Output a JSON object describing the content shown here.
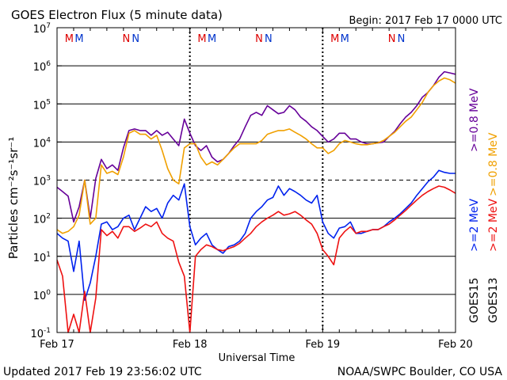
{
  "header": {
    "title": "GOES Electron Flux (5 minute data)",
    "begin": "Begin: 2017 Feb 17 0000 UTC"
  },
  "footer": {
    "updated": "Updated 2017 Feb 19 23:56:02 UTC",
    "credit": "NOAA/SWPC Boulder, CO USA"
  },
  "colors": {
    "goes15_08": "#660099",
    "goes13_08": "#f0a000",
    "goes15_2": "#0022ee",
    "goes13_2": "#ee1111",
    "marker_M": "#dd0000",
    "marker_N": "#0033cc"
  },
  "chart_data": {
    "type": "line",
    "title": "GOES Electron Flux (5 minute data)",
    "xlabel": "Universal Time",
    "ylabel": "Particles cm⁻²s⁻¹sr⁻¹",
    "y_scale": "log",
    "ylim": [
      0.1,
      10000000
    ],
    "y_ticks": [
      {
        "base": "10",
        "exp": "-1"
      },
      {
        "base": "10",
        "exp": "0"
      },
      {
        "base": "10",
        "exp": "1"
      },
      {
        "base": "10",
        "exp": "2"
      },
      {
        "base": "10",
        "exp": "3"
      },
      {
        "base": "10",
        "exp": "4"
      },
      {
        "base": "10",
        "exp": "5"
      },
      {
        "base": "10",
        "exp": "6"
      },
      {
        "base": "10",
        "exp": "7"
      }
    ],
    "x_ticks": [
      "Feb 17",
      "Feb 18",
      "Feb 19",
      "Feb 20"
    ],
    "xlim_hours": [
      0,
      72
    ],
    "markers": [
      {
        "label": "M",
        "hour": 2.2,
        "color": "#dd0000"
      },
      {
        "label": "M",
        "hour": 4.0,
        "color": "#0033cc"
      },
      {
        "label": "N",
        "hour": 12.5,
        "color": "#dd0000"
      },
      {
        "label": "N",
        "hour": 14.2,
        "color": "#0033cc"
      },
      {
        "label": "M",
        "hour": 26.2,
        "color": "#dd0000"
      },
      {
        "label": "M",
        "hour": 28.0,
        "color": "#0033cc"
      },
      {
        "label": "N",
        "hour": 36.5,
        "color": "#dd0000"
      },
      {
        "label": "N",
        "hour": 38.2,
        "color": "#0033cc"
      },
      {
        "label": "M",
        "hour": 50.2,
        "color": "#dd0000"
      },
      {
        "label": "M",
        "hour": 52.0,
        "color": "#0033cc"
      },
      {
        "label": "N",
        "hour": 60.5,
        "color": "#dd0000"
      },
      {
        "label": "N",
        "hour": 62.2,
        "color": "#0033cc"
      }
    ],
    "legend": {
      "satellites": [
        "GOES15",
        "GOES13"
      ],
      "energies": [
        {
          "label": ">=0.8  MeV",
          "color": "#660099"
        },
        {
          "label": ">=0.8  MeV",
          "color": "#f0a000"
        },
        {
          "label": ">=2  MeV",
          "color": "#0022ee"
        },
        {
          "label": ">=2  MeV",
          "color": "#ee1111"
        }
      ]
    },
    "series": [
      {
        "name": "GOES15 >=0.8 MeV",
        "color": "#660099",
        "hours": [
          0,
          1,
          2,
          3,
          4,
          5,
          6,
          7,
          8,
          9,
          10,
          11,
          12,
          13,
          14,
          15,
          16,
          17,
          18,
          19,
          20,
          21,
          22,
          23,
          24,
          25,
          26,
          27,
          28,
          29,
          30,
          31,
          32,
          33,
          34,
          35,
          36,
          37,
          38,
          39,
          40,
          41,
          42,
          43,
          44,
          45,
          46,
          47,
          48,
          49,
          50,
          51,
          52,
          53,
          54,
          55,
          56,
          57,
          58,
          59,
          60,
          61,
          62,
          63,
          64,
          65,
          66,
          67,
          68,
          69,
          70,
          71,
          72
        ],
        "values": [
          650,
          500,
          380,
          80,
          200,
          1000,
          100,
          1100,
          3500,
          2000,
          2500,
          1800,
          7000,
          20000,
          22000,
          20000,
          20000,
          15000,
          20000,
          15000,
          18000,
          12000,
          8000,
          40000,
          17000,
          8000,
          6000,
          8000,
          4000,
          3000,
          3500,
          5000,
          8000,
          12000,
          25000,
          50000,
          60000,
          50000,
          90000,
          70000,
          55000,
          60000,
          90000,
          70000,
          45000,
          35000,
          25000,
          20000,
          14000,
          10000,
          12000,
          17000,
          17000,
          12000,
          12000,
          10000,
          9000,
          9000,
          9500,
          10000,
          14000,
          19000,
          30000,
          45000,
          60000,
          90000,
          150000,
          200000,
          300000,
          500000,
          700000,
          650000,
          600000
        ]
      },
      {
        "name": "GOES13 >=0.8 MeV",
        "color": "#f0a000",
        "hours": [
          0,
          1,
          2,
          3,
          4,
          5,
          6,
          7,
          8,
          9,
          10,
          11,
          12,
          13,
          14,
          15,
          16,
          17,
          18,
          19,
          20,
          21,
          22,
          23,
          24,
          25,
          26,
          27,
          28,
          29,
          30,
          31,
          32,
          33,
          34,
          35,
          36,
          37,
          38,
          39,
          40,
          41,
          42,
          43,
          44,
          45,
          46,
          47,
          48,
          49,
          50,
          51,
          52,
          53,
          54,
          55,
          56,
          57,
          58,
          59,
          60,
          61,
          62,
          63,
          64,
          65,
          66,
          67,
          68,
          69,
          70,
          71,
          72
        ],
        "values": [
          50,
          40,
          45,
          60,
          120,
          1000,
          70,
          100,
          2500,
          1500,
          1700,
          1400,
          4000,
          17000,
          20000,
          16000,
          16000,
          12000,
          15000,
          6000,
          2000,
          1000,
          800,
          7000,
          9000,
          9000,
          4000,
          2500,
          3000,
          2500,
          3500,
          5000,
          7000,
          9000,
          9000,
          9000,
          9000,
          11000,
          16000,
          18000,
          20000,
          20000,
          22000,
          18000,
          15000,
          12000,
          9000,
          7000,
          7000,
          5000,
          6000,
          9000,
          11000,
          10000,
          9000,
          8500,
          8500,
          9000,
          9500,
          11000,
          14000,
          18000,
          25000,
          35000,
          45000,
          70000,
          110000,
          200000,
          300000,
          400000,
          480000,
          430000,
          350000
        ]
      },
      {
        "name": "GOES15 >=2 MeV",
        "color": "#0022ee",
        "hours": [
          0,
          1,
          2,
          3,
          4,
          5,
          6,
          7,
          8,
          9,
          10,
          11,
          12,
          13,
          14,
          15,
          16,
          17,
          18,
          19,
          20,
          21,
          22,
          23,
          24,
          25,
          26,
          27,
          28,
          29,
          30,
          31,
          32,
          33,
          34,
          35,
          36,
          37,
          38,
          39,
          40,
          41,
          42,
          43,
          44,
          45,
          46,
          47,
          48,
          49,
          50,
          51,
          52,
          53,
          54,
          55,
          56,
          57,
          58,
          59,
          60,
          61,
          62,
          63,
          64,
          65,
          66,
          67,
          68,
          69,
          70,
          71,
          72
        ],
        "values": [
          40,
          30,
          25,
          4,
          25,
          0.7,
          2,
          10,
          70,
          80,
          50,
          60,
          100,
          120,
          50,
          100,
          200,
          150,
          180,
          100,
          250,
          400,
          300,
          800,
          60,
          20,
          30,
          40,
          20,
          15,
          12,
          18,
          20,
          25,
          40,
          100,
          150,
          200,
          300,
          350,
          700,
          400,
          600,
          500,
          400,
          300,
          250,
          400,
          80,
          40,
          30,
          55,
          60,
          80,
          40,
          40,
          45,
          50,
          50,
          60,
          80,
          100,
          130,
          180,
          250,
          400,
          600,
          900,
          1200,
          1800,
          1600,
          1500,
          1500
        ]
      },
      {
        "name": "GOES13 >=2 MeV",
        "color": "#ee1111",
        "hours": [
          0,
          1,
          2,
          3,
          4,
          5,
          6,
          7,
          8,
          9,
          10,
          11,
          12,
          13,
          14,
          15,
          16,
          17,
          18,
          19,
          20,
          21,
          22,
          23,
          24,
          25,
          26,
          27,
          28,
          29,
          30,
          31,
          32,
          33,
          34,
          35,
          36,
          37,
          38,
          39,
          40,
          41,
          42,
          43,
          44,
          45,
          46,
          47,
          48,
          49,
          50,
          51,
          52,
          53,
          54,
          55,
          56,
          57,
          58,
          59,
          60,
          61,
          62,
          63,
          64,
          65,
          66,
          67,
          68,
          69,
          70,
          71,
          72
        ],
        "values": [
          8,
          3,
          0.1,
          0.3,
          0.1,
          1.2,
          0.1,
          0.8,
          50,
          35,
          45,
          30,
          60,
          60,
          45,
          55,
          70,
          60,
          80,
          40,
          30,
          25,
          7,
          3,
          0.1,
          10,
          15,
          20,
          18,
          15,
          14,
          16,
          18,
          22,
          30,
          40,
          60,
          80,
          100,
          120,
          150,
          120,
          130,
          150,
          120,
          90,
          70,
          40,
          15,
          10,
          6,
          30,
          45,
          60,
          40,
          45,
          45,
          50,
          50,
          60,
          70,
          90,
          120,
          160,
          220,
          300,
          400,
          500,
          600,
          700,
          650,
          550,
          450
        ]
      }
    ]
  }
}
